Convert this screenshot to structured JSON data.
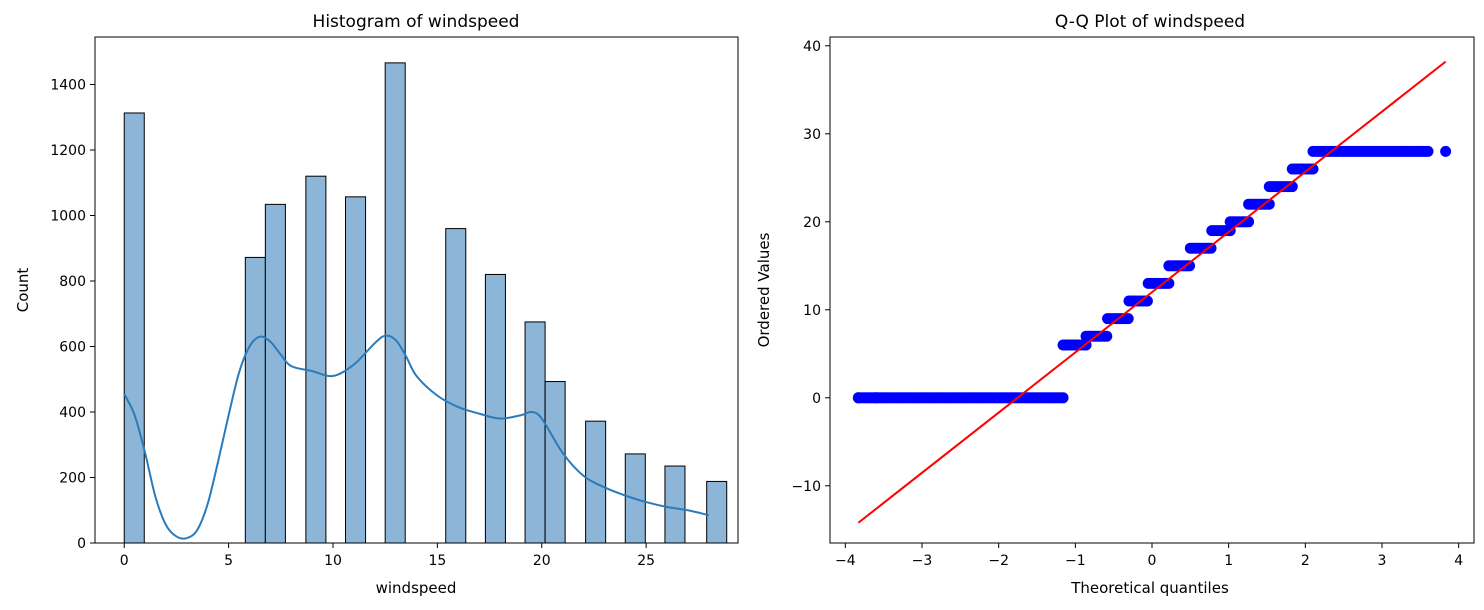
{
  "chart_data": [
    {
      "type": "bar",
      "title": "Histogram of windspeed",
      "xlabel": "windspeed",
      "ylabel": "Count",
      "xlim": [
        -1.4,
        29.4
      ],
      "ylim": [
        0,
        1545
      ],
      "xticks": [
        0,
        5,
        10,
        15,
        20,
        25
      ],
      "yticks": [
        0,
        200,
        400,
        600,
        800,
        1000,
        1200,
        1400
      ],
      "bar_color": "#8cb5d7",
      "bar_edge_color": "#000000",
      "kde_color": "#2b7bba",
      "bins": [
        {
          "x0": 0.0,
          "x1": 0.96,
          "count": 1313
        },
        {
          "x0": 5.8,
          "x1": 6.76,
          "count": 872
        },
        {
          "x0": 6.76,
          "x1": 7.72,
          "count": 1034
        },
        {
          "x0": 8.7,
          "x1": 9.66,
          "count": 1120
        },
        {
          "x0": 10.6,
          "x1": 11.56,
          "count": 1057
        },
        {
          "x0": 12.5,
          "x1": 13.46,
          "count": 1466
        },
        {
          "x0": 15.4,
          "x1": 16.36,
          "count": 960
        },
        {
          "x0": 17.3,
          "x1": 18.26,
          "count": 820
        },
        {
          "x0": 19.2,
          "x1": 20.16,
          "count": 675
        },
        {
          "x0": 20.16,
          "x1": 21.12,
          "count": 493
        },
        {
          "x0": 22.1,
          "x1": 23.06,
          "count": 372
        },
        {
          "x0": 24.0,
          "x1": 24.96,
          "count": 272
        },
        {
          "x0": 25.9,
          "x1": 26.86,
          "count": 235
        },
        {
          "x0": 27.9,
          "x1": 28.86,
          "count": 188
        }
      ],
      "kde": {
        "x": [
          0,
          0.5,
          1,
          1.5,
          2,
          2.5,
          3,
          3.5,
          4,
          4.5,
          5,
          5.5,
          6,
          6.5,
          7,
          7.5,
          8,
          9,
          10,
          11,
          12,
          12.5,
          13,
          13.5,
          14,
          15,
          16,
          17,
          18,
          19,
          19.5,
          20,
          21,
          22,
          23,
          24,
          25,
          26,
          27,
          28
        ],
        "y": [
          455,
          390,
          275,
          140,
          55,
          20,
          15,
          40,
          120,
          250,
          390,
          520,
          600,
          630,
          615,
          575,
          540,
          525,
          510,
          545,
          610,
          633,
          620,
          570,
          510,
          450,
          415,
          395,
          380,
          390,
          400,
          380,
          275,
          205,
          170,
          145,
          125,
          110,
          100,
          85
        ]
      }
    },
    {
      "type": "scatter",
      "title": "Q-Q Plot of windspeed",
      "xlabel": "Theoretical quantiles",
      "ylabel": "Ordered Values",
      "xlim": [
        -4.2,
        4.2
      ],
      "ylim": [
        -16.5,
        41
      ],
      "xticks": [
        -4,
        -3,
        -2,
        -1,
        0,
        1,
        2,
        3,
        4
      ],
      "ytick_values": [
        -10,
        0,
        10,
        20,
        30,
        40
      ],
      "ytick_labels": [
        "−10",
        "0",
        "10",
        "20",
        "30",
        "40"
      ],
      "xtick_labels": [
        "−4",
        "−3",
        "−2",
        "−1",
        "0",
        "1",
        "2",
        "3",
        "4"
      ],
      "point_color": "#0000ff",
      "line_color": "#ff0000",
      "fit_line": {
        "x": [
          -3.83,
          3.83
        ],
        "y": [
          -14.2,
          38.2
        ]
      },
      "segments": [
        {
          "value": 0.0,
          "x_start": -3.83,
          "x_end": -1.16,
          "outliers": [
            -3.83,
            -3.6
          ]
        },
        {
          "value": 6.0,
          "x_start": -1.16,
          "x_end": -0.86
        },
        {
          "value": 7.0,
          "x_start": -0.86,
          "x_end": -0.58
        },
        {
          "value": 9.0,
          "x_start": -0.58,
          "x_end": -0.3
        },
        {
          "value": 11.0,
          "x_start": -0.3,
          "x_end": -0.05
        },
        {
          "value": 13.0,
          "x_start": -0.05,
          "x_end": 0.22
        },
        {
          "value": 15.0,
          "x_start": 0.22,
          "x_end": 0.5
        },
        {
          "value": 17.0,
          "x_start": 0.5,
          "x_end": 0.78
        },
        {
          "value": 19.0,
          "x_start": 0.78,
          "x_end": 1.02
        },
        {
          "value": 20.0,
          "x_start": 1.02,
          "x_end": 1.26
        },
        {
          "value": 22.0,
          "x_start": 1.26,
          "x_end": 1.53
        },
        {
          "value": 24.0,
          "x_start": 1.53,
          "x_end": 1.83
        },
        {
          "value": 26.0,
          "x_start": 1.83,
          "x_end": 2.1
        },
        {
          "value": 28.0,
          "x_start": 2.1,
          "x_end": 3.6,
          "outliers": [
            3.83
          ]
        }
      ]
    }
  ]
}
